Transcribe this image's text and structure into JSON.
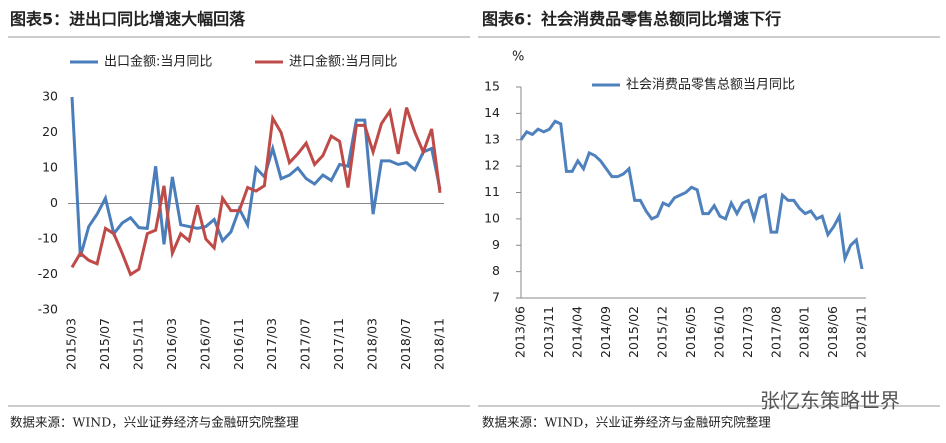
{
  "chart_data": [
    {
      "type": "line",
      "title": "图表5：进出口同比增速大幅回落",
      "source": "数据来源：WIND，兴业证券经济与金融研究院整理",
      "categories": [
        "2015/03",
        null,
        null,
        null,
        "2015/07",
        null,
        null,
        null,
        "2015/11",
        null,
        null,
        null,
        "2016/03",
        null,
        null,
        null,
        "2016/07",
        null,
        null,
        null,
        "2016/11",
        null,
        null,
        null,
        "2017/03",
        null,
        null,
        null,
        "2017/07",
        null,
        null,
        null,
        "2017/11",
        null,
        null,
        null,
        "2018/03",
        null,
        null,
        null,
        "2018/07",
        null,
        null,
        null,
        "2018/11"
      ],
      "series": [
        {
          "name": "出口金额:当月同比",
          "color": "#4a7ebb",
          "values": [
            30,
            -15,
            -6.5,
            -3,
            1.5,
            -8.5,
            -5.5,
            -4,
            -6.8,
            -7,
            10.5,
            -11.5,
            7.5,
            -6,
            -6.5,
            -7,
            -6.5,
            -4.5,
            -10.5,
            -8,
            -1.5,
            -6,
            10,
            7.5,
            15.5,
            7,
            8,
            10,
            7,
            5.5,
            8,
            6.5,
            11,
            10.5,
            23.5,
            23.5,
            -3,
            12,
            12,
            11,
            11.5,
            9.5,
            14.5,
            15.5,
            4
          ]
        },
        {
          "name": "进口金额:当月同比",
          "color": "#be4b48",
          "values": [
            -18,
            -14,
            -16,
            -17,
            -7,
            -8.5,
            -14,
            -20,
            -18.5,
            -8.5,
            -7.5,
            5,
            -14,
            -8.5,
            -10.5,
            -0.5,
            -10,
            -12.5,
            1.5,
            -2,
            -2,
            4.5,
            3.5,
            5,
            24,
            20,
            11.5,
            14,
            17,
            11,
            13.5,
            19,
            17.5,
            4.5,
            22,
            22,
            14.5,
            22.5,
            26,
            14,
            27,
            20,
            14.5,
            21,
            3
          ]
        }
      ],
      "ylim": [
        -30,
        30
      ],
      "yticks": [
        -30,
        -20,
        -10,
        0,
        10,
        20,
        30
      ]
    },
    {
      "type": "line",
      "title": "图表6：社会消费品零售总额同比增速下行",
      "source": "数据来源：WIND，兴业证券经济与金融研究院整理",
      "y_label": "%",
      "categories": [
        "2013/06",
        null,
        null,
        null,
        null,
        "2013/11",
        null,
        null,
        null,
        null,
        "2014/04",
        null,
        null,
        null,
        null,
        "2014/09",
        null,
        null,
        null,
        null,
        "2015/02",
        null,
        null,
        null,
        null,
        "2015/12",
        null,
        null,
        null,
        null,
        "2016/05",
        null,
        null,
        null,
        null,
        "2016/10",
        null,
        null,
        null,
        null,
        "2017/03",
        null,
        null,
        null,
        null,
        "2017/08",
        null,
        null,
        null,
        null,
        "2018/01",
        null,
        null,
        null,
        null,
        "2018/06",
        null,
        null,
        null,
        null,
        "2018/11"
      ],
      "series": [
        {
          "name": "社会消费品零售总额当月同比",
          "color": "#4f81bd",
          "values": [
            13.0,
            13.3,
            13.2,
            13.4,
            13.3,
            13.4,
            13.7,
            13.6,
            11.8,
            11.8,
            12.2,
            11.9,
            12.5,
            12.4,
            12.2,
            11.9,
            11.6,
            11.6,
            11.7,
            11.9,
            10.7,
            10.7,
            10.3,
            10.0,
            10.1,
            10.6,
            10.5,
            10.8,
            10.9,
            11.0,
            11.2,
            11.1,
            10.2,
            10.2,
            10.5,
            10.1,
            10.0,
            10.6,
            10.2,
            10.6,
            10.7,
            10.0,
            10.8,
            10.9,
            9.5,
            9.5,
            10.9,
            10.7,
            10.7,
            10.4,
            10.2,
            10.3,
            10.0,
            10.1,
            9.4,
            9.7,
            10.1,
            8.5,
            9.0,
            9.2,
            8.1
          ]
        }
      ],
      "ylim": [
        7,
        15
      ],
      "yticks": [
        7,
        8,
        9,
        10,
        11,
        12,
        13,
        14,
        15
      ]
    }
  ],
  "watermark": "张忆东策略世界"
}
